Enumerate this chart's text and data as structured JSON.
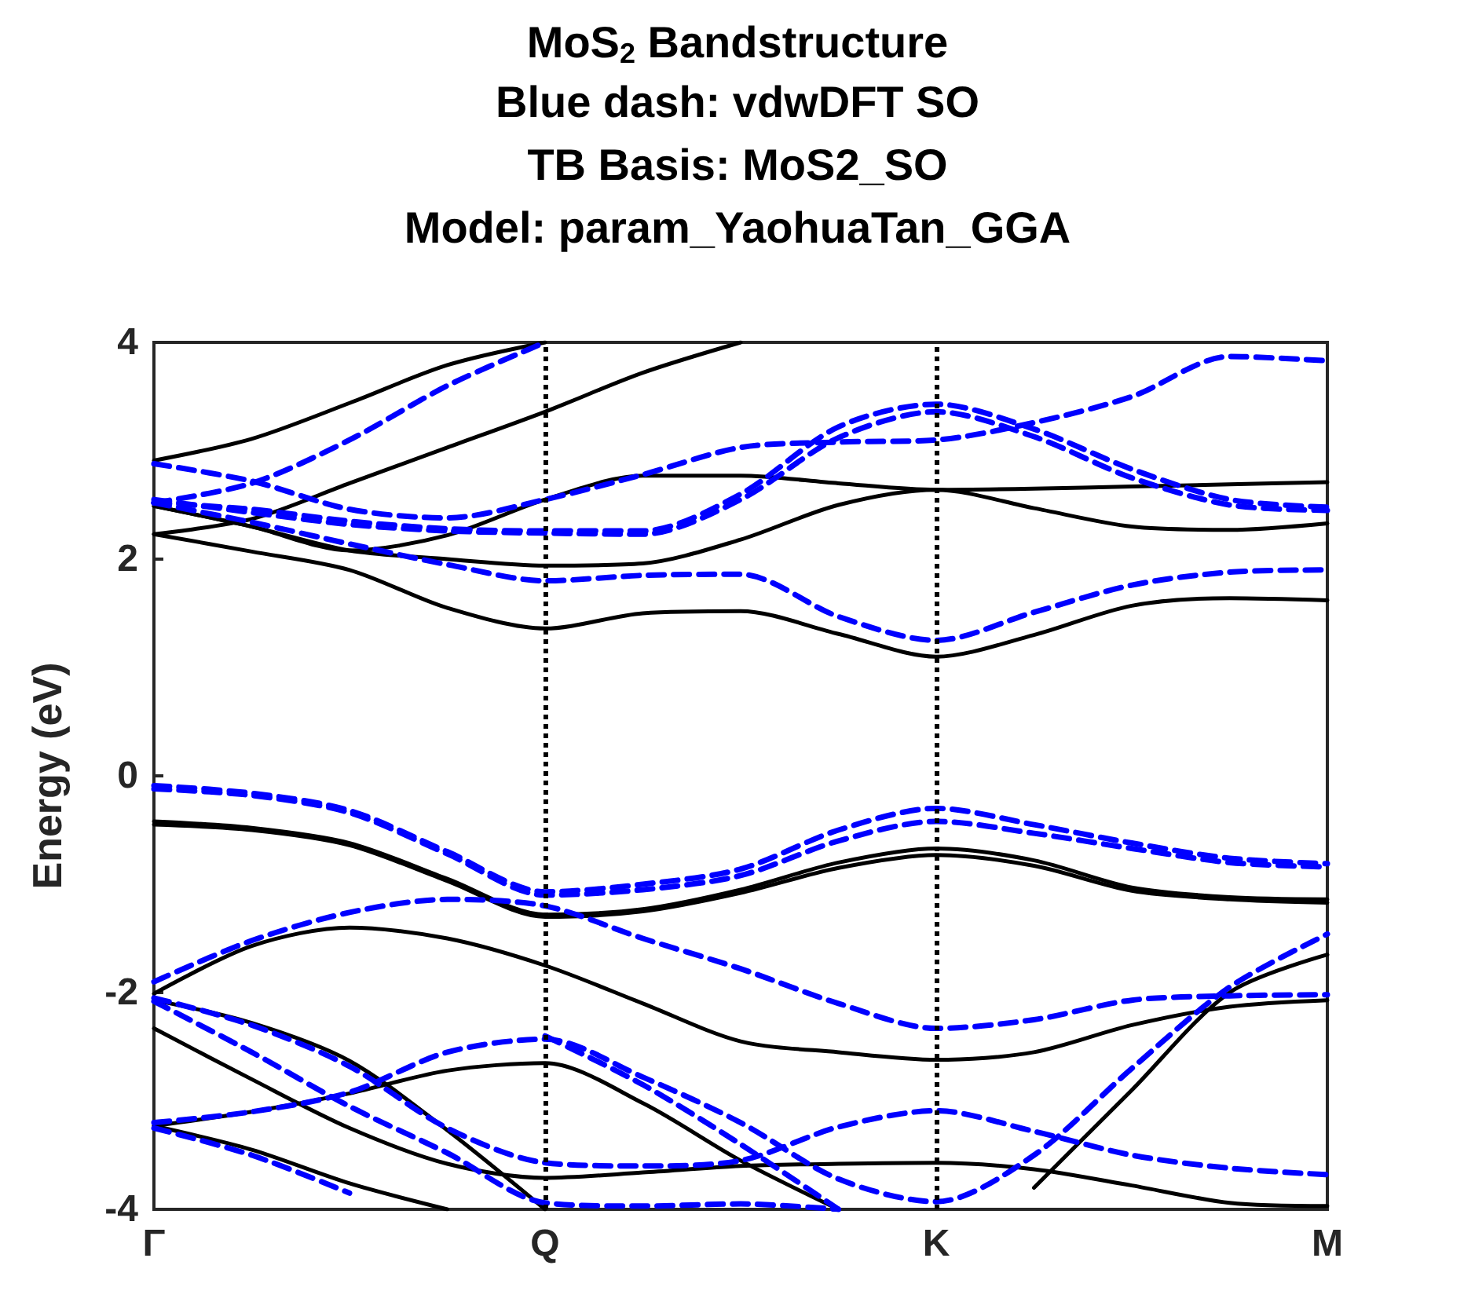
{
  "chart_data": {
    "type": "line",
    "title": "MoS$_{2}$ Bandstructure",
    "subtitle": "Blue dash: vdwDFT SO\nTB Basis: MoS2_SO\nModel: param_YaohuaTan_GGA",
    "ylabel": "Energy (eV)",
    "categories": [
      "Γ",
      null,
      null,
      null,
      "Q",
      null,
      null,
      null,
      "K",
      null,
      null,
      null,
      "M"
    ],
    "ylim": [
      -4,
      4
    ],
    "yticks": [
      -4,
      -2,
      0,
      2,
      4
    ],
    "grid": false,
    "marker": "none",
    "ref_lines": [
      {
        "axis": "x",
        "value": "Q",
        "color": "#000000",
        "line_style": "dotted"
      },
      {
        "axis": "x",
        "value": "K",
        "color": "#000000",
        "line_style": "dotted"
      }
    ],
    "series": [
      {
        "color": "#000000",
        "line_style": "solid",
        "values": [
          2.91,
          3.11,
          3.44,
          3.79,
          4,
          null,
          null,
          null,
          null,
          null,
          null,
          null,
          null
        ]
      },
      {
        "color": "#000000",
        "line_style": "solid",
        "values": [
          2.23,
          2.37,
          2.7,
          3.03,
          3.36,
          3.72,
          4,
          null,
          null,
          null,
          null,
          null,
          null
        ]
      },
      {
        "color": "#000000",
        "line_style": "solid",
        "values": [
          2.49,
          2.3,
          2.08,
          2.0,
          1.94,
          1.96,
          2.18,
          2.5,
          2.64,
          2.47,
          2.3,
          2.27,
          2.33
        ]
      },
      {
        "color": "#000000",
        "line_style": "solid",
        "values": [
          2.49,
          2.3,
          2.08,
          2.22,
          2.55,
          2.77,
          2.77,
          2.7,
          2.64,
          2.65,
          2.67,
          2.69,
          2.71
        ]
      },
      {
        "color": "#000000",
        "line_style": "solid",
        "values": [
          2.23,
          2.07,
          1.9,
          1.55,
          1.36,
          1.5,
          1.52,
          1.31,
          1.1,
          1.3,
          1.57,
          1.64,
          1.62
        ]
      },
      {
        "color": "#000000",
        "line_style": "solid",
        "values": [
          -0.42,
          -0.48,
          -0.62,
          -0.95,
          -1.28,
          -1.23,
          -1.05,
          -0.8,
          -0.67,
          -0.78,
          -1.03,
          -1.12,
          -1.14
        ]
      },
      {
        "color": "#000000",
        "line_style": "solid",
        "values": [
          -0.45,
          -0.5,
          -0.64,
          -0.97,
          -1.3,
          -1.25,
          -1.08,
          -0.85,
          -0.73,
          -0.83,
          -1.06,
          -1.14,
          -1.17
        ]
      },
      {
        "color": "#000000",
        "line_style": "solid",
        "values": [
          -2.01,
          -1.57,
          -1.4,
          -1.5,
          -1.75,
          -2.1,
          -2.45,
          -2.55,
          -2.62,
          -2.55,
          -2.3,
          -2.13,
          -2.07
        ]
      },
      {
        "color": "#000000",
        "line_style": "solid",
        "values": [
          null,
          null,
          null,
          null,
          null,
          null,
          null,
          null,
          null,
          -3.8,
          -2.9,
          -2.0,
          -1.65
        ]
      },
      {
        "color": "#000000",
        "line_style": "solid",
        "values": [
          -2.07,
          -2.28,
          -2.63,
          -3.27,
          -4,
          null,
          null,
          null,
          null,
          null,
          null,
          null,
          null
        ]
      },
      {
        "color": "#000000",
        "line_style": "solid",
        "values": [
          -2.33,
          -2.8,
          -3.25,
          -3.58,
          -3.71,
          -3.66,
          -3.6,
          -3.58,
          -3.57,
          -3.63,
          -3.78,
          -3.94,
          -3.97
        ]
      },
      {
        "color": "#000000",
        "line_style": "solid",
        "values": [
          -3.23,
          -3.1,
          -2.93,
          -2.72,
          -2.65,
          -3.02,
          -3.55,
          -4,
          null,
          null,
          null,
          null,
          null
        ]
      },
      {
        "color": "#000000",
        "line_style": "solid",
        "values": [
          -3.23,
          -3.45,
          -3.76,
          -4,
          null,
          null,
          null,
          null,
          null,
          null,
          null,
          null,
          null
        ]
      },
      {
        "color": "#0000ff",
        "line_style": "dashed",
        "values": [
          2.52,
          2.7,
          3.1,
          3.6,
          4,
          null,
          null,
          null,
          null,
          null,
          null,
          null,
          null
        ]
      },
      {
        "color": "#0000ff",
        "line_style": "dashed",
        "values": [
          2.88,
          2.72,
          2.46,
          2.38,
          2.55,
          2.78,
          3.03,
          3.08,
          3.1,
          3.26,
          3.5,
          3.87,
          3.83
        ]
      },
      {
        "color": "#0000ff",
        "line_style": "dashed",
        "values": [
          2.52,
          2.46,
          2.35,
          2.28,
          2.26,
          2.26,
          2.6,
          3.22,
          3.43,
          3.2,
          2.83,
          2.55,
          2.48
        ]
      },
      {
        "color": "#0000ff",
        "line_style": "dashed",
        "values": [
          2.55,
          2.43,
          2.32,
          2.26,
          2.24,
          2.23,
          2.55,
          3.12,
          3.36,
          3.13,
          2.75,
          2.5,
          2.45
        ]
      },
      {
        "color": "#0000ff",
        "line_style": "dashed",
        "values": [
          2.52,
          2.34,
          2.14,
          1.95,
          1.8,
          1.85,
          1.86,
          1.47,
          1.25,
          1.51,
          1.76,
          1.88,
          1.9
        ]
      },
      {
        "color": "#0000ff",
        "line_style": "dashed",
        "values": [
          -0.09,
          -0.16,
          -0.32,
          -0.7,
          -1.07,
          -1.0,
          -0.86,
          -0.5,
          -0.3,
          -0.45,
          -0.62,
          -0.76,
          -0.81
        ]
      },
      {
        "color": "#0000ff",
        "line_style": "dashed",
        "values": [
          -0.12,
          -0.18,
          -0.34,
          -0.72,
          -1.1,
          -1.05,
          -0.92,
          -0.6,
          -0.42,
          -0.53,
          -0.67,
          -0.8,
          -0.84
        ]
      },
      {
        "color": "#0000ff",
        "line_style": "dashed",
        "values": [
          -1.9,
          -1.52,
          -1.26,
          -1.14,
          -1.2,
          -1.5,
          -1.78,
          -2.1,
          -2.33,
          -2.25,
          -2.07,
          -2.03,
          -2.02
        ]
      },
      {
        "color": "#0000ff",
        "line_style": "dashed",
        "values": [
          -2.05,
          -2.3,
          -2.68,
          -3.25,
          -3.57,
          -3.6,
          -3.55,
          -3.24,
          -3.09,
          -3.28,
          -3.5,
          -3.62,
          -3.68
        ]
      },
      {
        "color": "#0000ff",
        "line_style": "dashed",
        "values": [
          -2.08,
          -2.55,
          -3.05,
          -3.48,
          -3.94,
          -3.97,
          -3.95,
          -4,
          null,
          null,
          null,
          null,
          null
        ]
      },
      {
        "color": "#0000ff",
        "line_style": "dashed",
        "values": [
          -3.2,
          -3.1,
          -2.92,
          -2.55,
          -2.43,
          -2.78,
          -3.2,
          -3.72,
          -3.93,
          -3.5,
          -2.7,
          -1.95,
          -1.46
        ]
      },
      {
        "color": "#0000ff",
        "line_style": "dashed",
        "values": [
          null,
          null,
          null,
          null,
          -2.4,
          -2.85,
          -3.4,
          -4,
          null,
          null,
          null,
          null,
          null
        ]
      },
      {
        "color": "#0000ff",
        "line_style": "dashed",
        "values": [
          -3.25,
          -3.5,
          -3.85,
          null,
          null,
          null,
          null,
          null,
          null,
          null,
          null,
          null,
          null
        ]
      }
    ]
  }
}
